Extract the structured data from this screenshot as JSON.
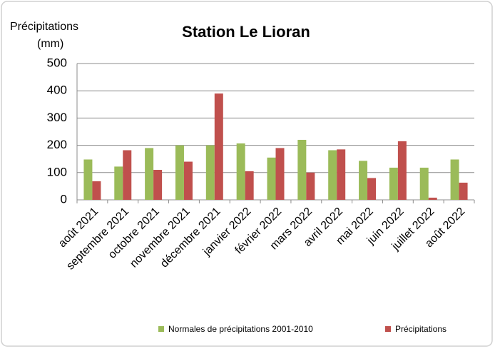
{
  "chart_data": {
    "type": "bar",
    "title": "Station Le Lioran",
    "ylabel": [
      "Précipitations",
      "(mm)"
    ],
    "categories": [
      "août 2021",
      "septembre 2021",
      "octobre 2021",
      "novembre 2021",
      "décembre 2021",
      "janvier 2022",
      "février 2022",
      "mars 2022",
      "avril 2022",
      "mai 2022",
      "juin 2022",
      "juillet 2022",
      "août 2022"
    ],
    "series": [
      {
        "name": "Normales de précipitations 2001-2010",
        "color": "#9bbb59",
        "values": [
          148,
          122,
          190,
          200,
          200,
          207,
          155,
          220,
          182,
          143,
          118,
          118,
          148
        ]
      },
      {
        "name": "Précipitations",
        "color": "#c0504d",
        "values": [
          68,
          182,
          110,
          140,
          390,
          105,
          190,
          100,
          185,
          80,
          215,
          8,
          63
        ]
      }
    ],
    "ylim": [
      0,
      500
    ],
    "yticks": [
      0,
      100,
      200,
      300,
      400,
      500
    ],
    "grid": true,
    "legend": "bottom"
  }
}
